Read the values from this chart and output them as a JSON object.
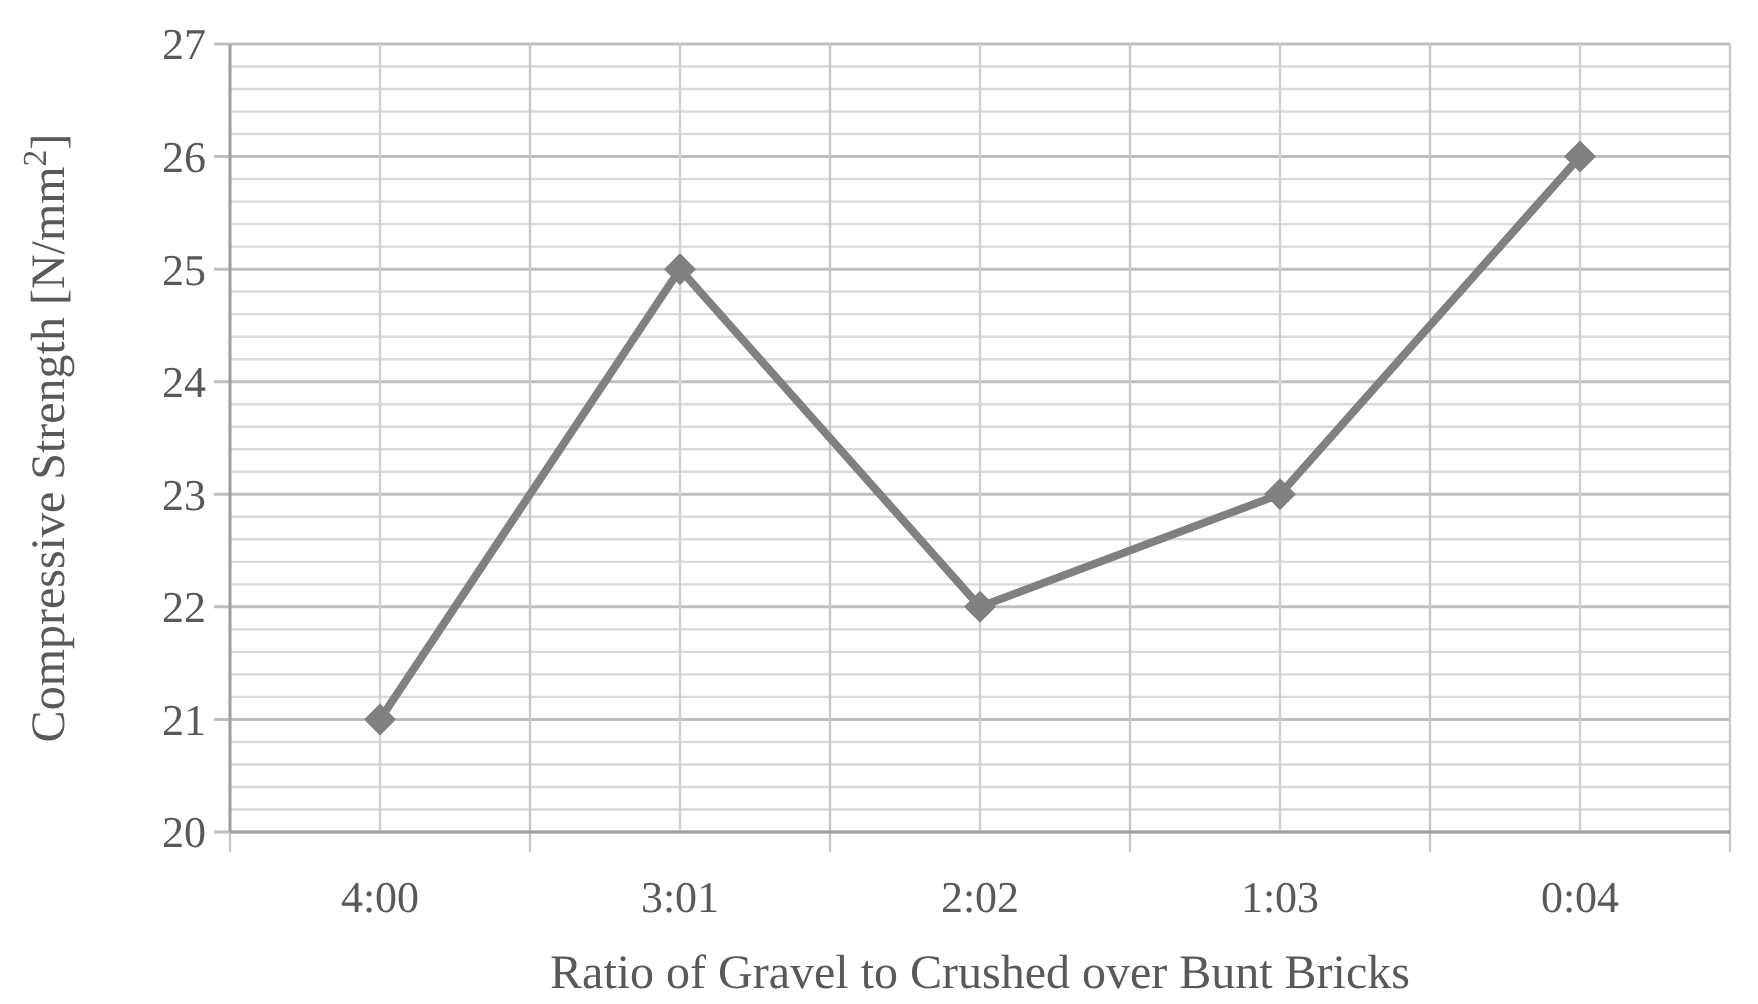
{
  "chart_data": {
    "type": "line",
    "xlabel": "Ratio of Gravel to Crushed over Bunt Bricks",
    "ylabel": "Compressive Strength [N/mm$^{2}$]",
    "categories": [
      "4:00",
      "3:01",
      "2:02",
      "1:03",
      "0:04"
    ],
    "series": [
      {
        "color": "#808080",
        "values": [
          21,
          25,
          22,
          23,
          26
        ]
      }
    ],
    "ylim": [
      20,
      27
    ],
    "yticks": [
      20,
      21,
      22,
      23,
      24,
      25,
      26,
      27
    ],
    "grid": true,
    "marker": "diamond",
    "line_style": "solid"
  }
}
